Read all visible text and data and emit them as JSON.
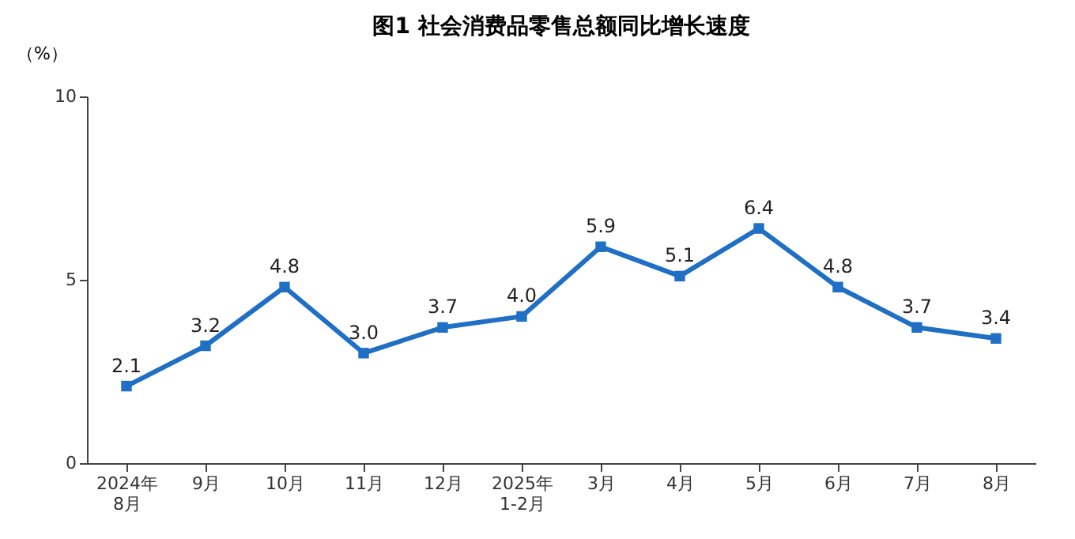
{
  "chart_data": {
    "type": "line",
    "title": "图1 社会消费品零售总额同比增长速度",
    "ylabel": "（%）",
    "categories": [
      "2024年\n8月",
      "9月",
      "10月",
      "11月",
      "12月",
      "2025年\n1-2月",
      "3月",
      "4月",
      "5月",
      "6月",
      "7月",
      "8月"
    ],
    "series": [
      {
        "color": "#1f6fc5",
        "values": [
          2.1,
          3.2,
          4.8,
          3.0,
          3.7,
          4.0,
          5.9,
          5.1,
          6.4,
          4.8,
          3.7,
          3.4
        ],
        "value_labels": [
          "2.1",
          "3.2",
          "4.8",
          "3.0",
          "3.7",
          "4.0",
          "5.9",
          "5.1",
          "6.4",
          "4.8",
          "3.7",
          "3.4"
        ]
      }
    ],
    "ylim": [
      0,
      10
    ],
    "yticks": [
      0,
      5,
      10
    ],
    "grid": false,
    "marker": "square",
    "line_style": "solid"
  }
}
